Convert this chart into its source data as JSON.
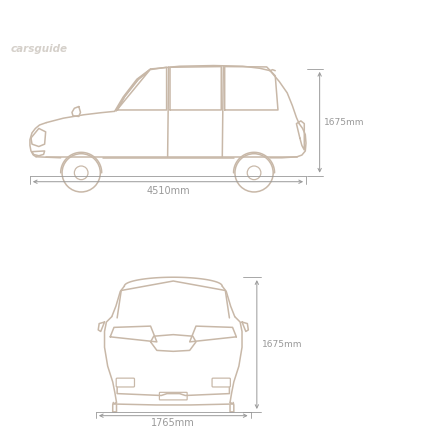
{
  "watermark": "carsguide",
  "line_color": "#c8b8a8",
  "text_color": "#999999",
  "bg_color": "#ffffff",
  "height_label": "1675mm",
  "width_label": "1765mm",
  "length_label": "4510mm"
}
